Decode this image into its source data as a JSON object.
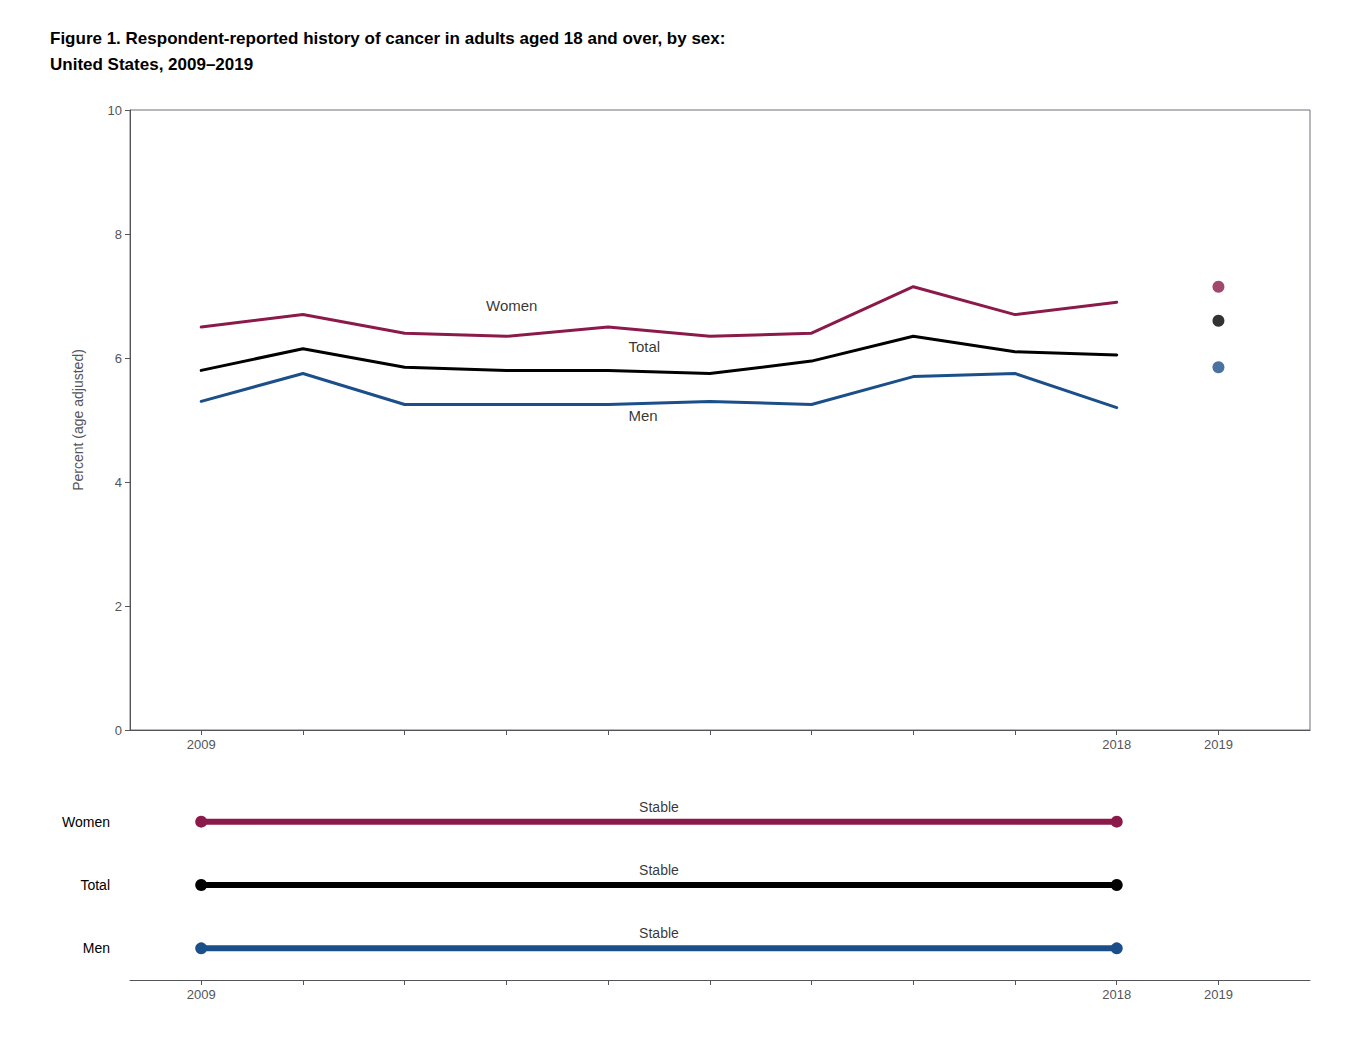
{
  "chart_data": [
    {
      "type": "line",
      "title": "Figure 1. Respondent-reported history of cancer in adults aged 18 and over, by sex:\nUnited States, 2009–2019",
      "x": [
        2009,
        2010,
        2011,
        2012,
        2013,
        2014,
        2015,
        2016,
        2017,
        2018,
        2019
      ],
      "xlim": [
        2008.3,
        2019.9
      ],
      "xticks": [
        2009,
        2018,
        2019
      ],
      "ylabel": "Percent (age adjusted)",
      "ylim": [
        0,
        10
      ],
      "yticks": [
        0,
        2,
        4,
        6,
        8,
        10
      ],
      "grid": false,
      "series": [
        {
          "name": "Women",
          "type": "line",
          "color": "#8B1A4A",
          "values": [
            6.5,
            6.7,
            6.4,
            6.35,
            6.5,
            6.35,
            6.4,
            7.15,
            6.7,
            6.9,
            null
          ]
        },
        {
          "name": "Total",
          "type": "line",
          "color": "#000000",
          "values": [
            5.8,
            6.15,
            5.85,
            5.8,
            5.8,
            5.75,
            5.95,
            6.35,
            6.1,
            6.05,
            null
          ]
        },
        {
          "name": "Men",
          "type": "line",
          "color": "#1B4F8A",
          "values": [
            5.3,
            5.75,
            5.25,
            5.25,
            5.25,
            5.3,
            5.25,
            5.7,
            5.75,
            5.2,
            null
          ]
        },
        {
          "name": "Women",
          "type": "scatter",
          "marker": "circle",
          "color": "#8B1A4A",
          "values": [
            null,
            null,
            null,
            null,
            null,
            null,
            null,
            null,
            null,
            null,
            7.15
          ]
        },
        {
          "name": "Total",
          "type": "scatter",
          "marker": "circle",
          "color": "#000000",
          "values": [
            null,
            null,
            null,
            null,
            null,
            null,
            null,
            null,
            null,
            null,
            6.6
          ]
        },
        {
          "name": "Men",
          "type": "scatter",
          "marker": "circle",
          "color": "#1B4F8A",
          "values": [
            null,
            null,
            null,
            null,
            null,
            null,
            null,
            null,
            null,
            null,
            5.85
          ]
        }
      ],
      "annotations": [
        {
          "text": "Women",
          "x": 2011.8,
          "y": 6.72
        },
        {
          "text": "Total",
          "x": 2013.2,
          "y": 6.06
        },
        {
          "text": "Men",
          "x": 2013.2,
          "y": 4.95
        }
      ]
    },
    {
      "type": "trend",
      "categories": [
        "Women",
        "Total",
        "Men"
      ],
      "x": [
        2009,
        2018
      ],
      "xlim": [
        2008.3,
        2019.9
      ],
      "xticks": [
        2009,
        2018,
        2019
      ],
      "series": [
        {
          "name": "Women",
          "color": "#8B1A4A",
          "label": "Stable"
        },
        {
          "name": "Total",
          "color": "#000000",
          "label": "Stable"
        },
        {
          "name": "Men",
          "color": "#1B4F8A",
          "label": "Stable"
        }
      ]
    }
  ]
}
